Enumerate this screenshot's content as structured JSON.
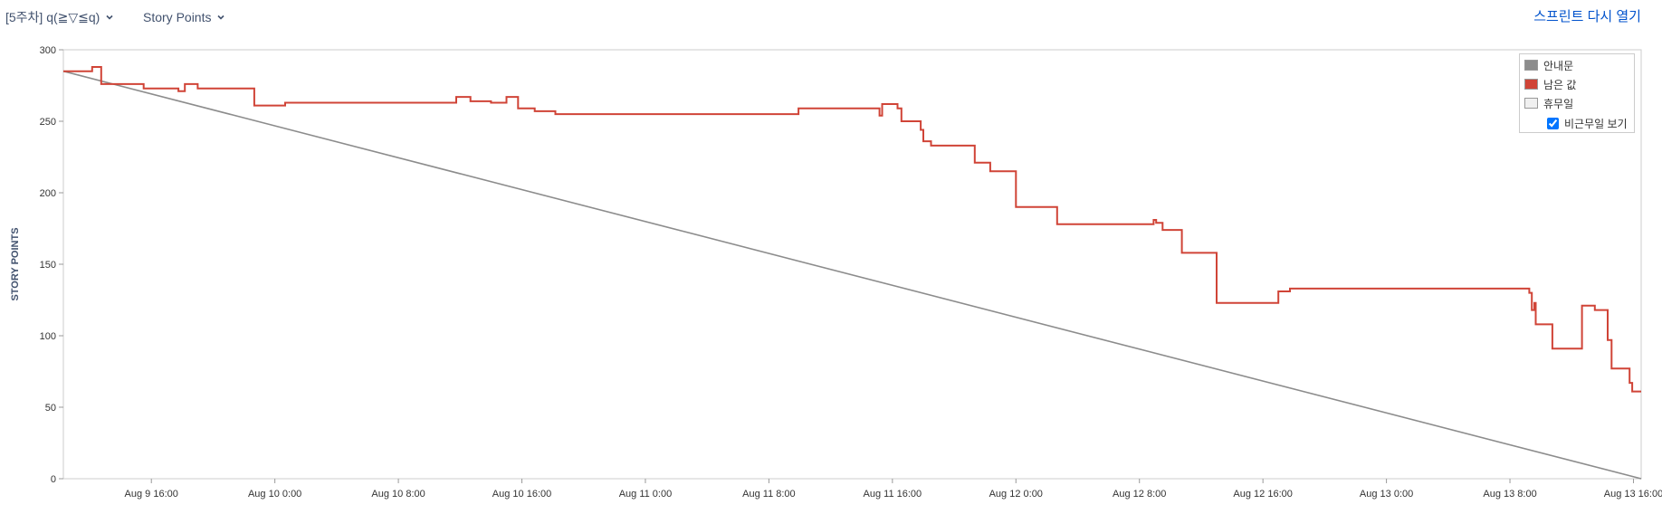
{
  "toolbar": {
    "sprint_label": "[5주차] q(≧▽≦q)",
    "metric_label": "Story Points",
    "reopen_label": "스프린트 다시 열기"
  },
  "legend": {
    "guide_label": "안내문",
    "remaining_label": "남은 값",
    "nonwork_label": "휴무일",
    "show_nonwork_label": "비근무일 보기",
    "show_nonwork_checked": true
  },
  "colors": {
    "guide": "#8c8c8c",
    "remaining": "#d04437",
    "nonwork": "#f0f0f0",
    "link": "#0052cc"
  },
  "chart_data": {
    "type": "line",
    "title": "",
    "xlabel": "",
    "ylabel": "STORY POINTS",
    "ylim": [
      0,
      300
    ],
    "yticks": [
      0,
      50,
      100,
      150,
      200,
      250,
      300
    ],
    "xrange": [
      "Aug 9 10:18",
      "Aug 13 16:30"
    ],
    "xticks": [
      "Aug 9 16:00",
      "Aug 10 0:00",
      "Aug 10 8:00",
      "Aug 10 16:00",
      "Aug 11 0:00",
      "Aug 11 8:00",
      "Aug 11 16:00",
      "Aug 12 0:00",
      "Aug 12 8:00",
      "Aug 12 16:00",
      "Aug 13 0:00",
      "Aug 13 8:00",
      "Aug 13 16:00"
    ],
    "grid": false,
    "legend_position": "top-right",
    "series": [
      {
        "name": "안내문",
        "style": "guideline",
        "points": [
          [
            "Aug 9 10:18",
            285
          ],
          [
            "Aug 13 16:30",
            0
          ]
        ]
      },
      {
        "name": "남은 값",
        "style": "step",
        "points": [
          [
            "Aug 9 10:18",
            285
          ],
          [
            "Aug 9 12:10",
            288
          ],
          [
            "Aug 9 12:45",
            276
          ],
          [
            "Aug 9 15:30",
            273
          ],
          [
            "Aug 9 17:45",
            271
          ],
          [
            "Aug 9 18:10",
            276
          ],
          [
            "Aug 9 19:00",
            273
          ],
          [
            "Aug 9 22:40",
            261
          ],
          [
            "Aug 10 0:40",
            263
          ],
          [
            "Aug 10 11:45",
            267
          ],
          [
            "Aug 10 12:40",
            264
          ],
          [
            "Aug 10 14:00",
            263
          ],
          [
            "Aug 10 15:00",
            267
          ],
          [
            "Aug 10 15:45",
            259
          ],
          [
            "Aug 10 16:50",
            257
          ],
          [
            "Aug 10 18:10",
            255
          ],
          [
            "Aug 11 9:55",
            259
          ],
          [
            "Aug 11 15:10",
            254
          ],
          [
            "Aug 11 15:20",
            262
          ],
          [
            "Aug 11 16:20",
            259
          ],
          [
            "Aug 11 16:35",
            250
          ],
          [
            "Aug 11 17:50",
            244
          ],
          [
            "Aug 11 18:00",
            236
          ],
          [
            "Aug 11 18:30",
            233
          ],
          [
            "Aug 11 21:20",
            221
          ],
          [
            "Aug 11 22:20",
            215
          ],
          [
            "Aug 12 0:00",
            190
          ],
          [
            "Aug 12 2:40",
            178
          ],
          [
            "Aug 12 8:55",
            181
          ],
          [
            "Aug 12 9:05",
            179
          ],
          [
            "Aug 12 9:30",
            174
          ],
          [
            "Aug 12 10:45",
            158
          ],
          [
            "Aug 12 13:00",
            123
          ],
          [
            "Aug 12 17:00",
            131
          ],
          [
            "Aug 12 17:45",
            133
          ],
          [
            "Aug 13 9:15",
            130
          ],
          [
            "Aug 13 9:25",
            118
          ],
          [
            "Aug 13 9:35",
            123
          ],
          [
            "Aug 13 9:40",
            108
          ],
          [
            "Aug 13 10:45",
            91
          ],
          [
            "Aug 13 12:40",
            121
          ],
          [
            "Aug 13 13:30",
            118
          ],
          [
            "Aug 13 14:20",
            97
          ],
          [
            "Aug 13 14:35",
            77
          ],
          [
            "Aug 13 15:45",
            67
          ],
          [
            "Aug 13 15:55",
            61
          ],
          [
            "Aug 13 16:30",
            61
          ]
        ]
      }
    ]
  }
}
